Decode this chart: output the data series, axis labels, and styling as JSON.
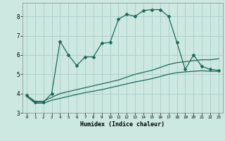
{
  "xlabel": "Humidex (Indice chaleur)",
  "background_color": "#cce8e0",
  "grid_color": "#aacccc",
  "line_color": "#1a6b5a",
  "xlim": [
    -0.5,
    23.5
  ],
  "ylim": [
    3.0,
    8.7
  ],
  "yticks": [
    3,
    4,
    5,
    6,
    7,
    8
  ],
  "xticks": [
    0,
    1,
    2,
    3,
    4,
    5,
    6,
    7,
    8,
    9,
    10,
    11,
    12,
    13,
    14,
    15,
    16,
    17,
    18,
    19,
    20,
    21,
    22,
    23
  ],
  "series_main_x": [
    0,
    1,
    2,
    3,
    4,
    5,
    6,
    7,
    8,
    9,
    10,
    11,
    12,
    13,
    14,
    15,
    16,
    17,
    18,
    19,
    20,
    21,
    22,
    23
  ],
  "series_main_y": [
    3.9,
    3.55,
    3.55,
    4.0,
    6.7,
    6.0,
    5.45,
    5.9,
    5.9,
    6.6,
    6.65,
    7.85,
    8.1,
    8.0,
    8.3,
    8.35,
    8.35,
    8.0,
    6.65,
    5.25,
    6.0,
    5.4,
    5.25,
    5.2
  ],
  "series_high_x": [
    0,
    1,
    2,
    3,
    4,
    5,
    6,
    7,
    8,
    9,
    10,
    11,
    12,
    13,
    14,
    15,
    16,
    17,
    18,
    19,
    20,
    21,
    22,
    23
  ],
  "series_high_y": [
    3.9,
    3.6,
    3.6,
    3.8,
    4.0,
    4.1,
    4.2,
    4.3,
    4.4,
    4.5,
    4.6,
    4.7,
    4.85,
    5.0,
    5.1,
    5.2,
    5.35,
    5.5,
    5.6,
    5.65,
    5.7,
    5.75,
    5.75,
    5.8
  ],
  "series_low_x": [
    0,
    1,
    2,
    3,
    4,
    5,
    6,
    7,
    8,
    9,
    10,
    11,
    12,
    13,
    14,
    15,
    16,
    17,
    18,
    19,
    20,
    21,
    22,
    23
  ],
  "series_low_y": [
    3.85,
    3.5,
    3.5,
    3.65,
    3.75,
    3.85,
    3.95,
    4.05,
    4.12,
    4.2,
    4.3,
    4.4,
    4.5,
    4.6,
    4.68,
    4.77,
    4.88,
    5.0,
    5.08,
    5.12,
    5.15,
    5.18,
    5.15,
    5.15
  ]
}
